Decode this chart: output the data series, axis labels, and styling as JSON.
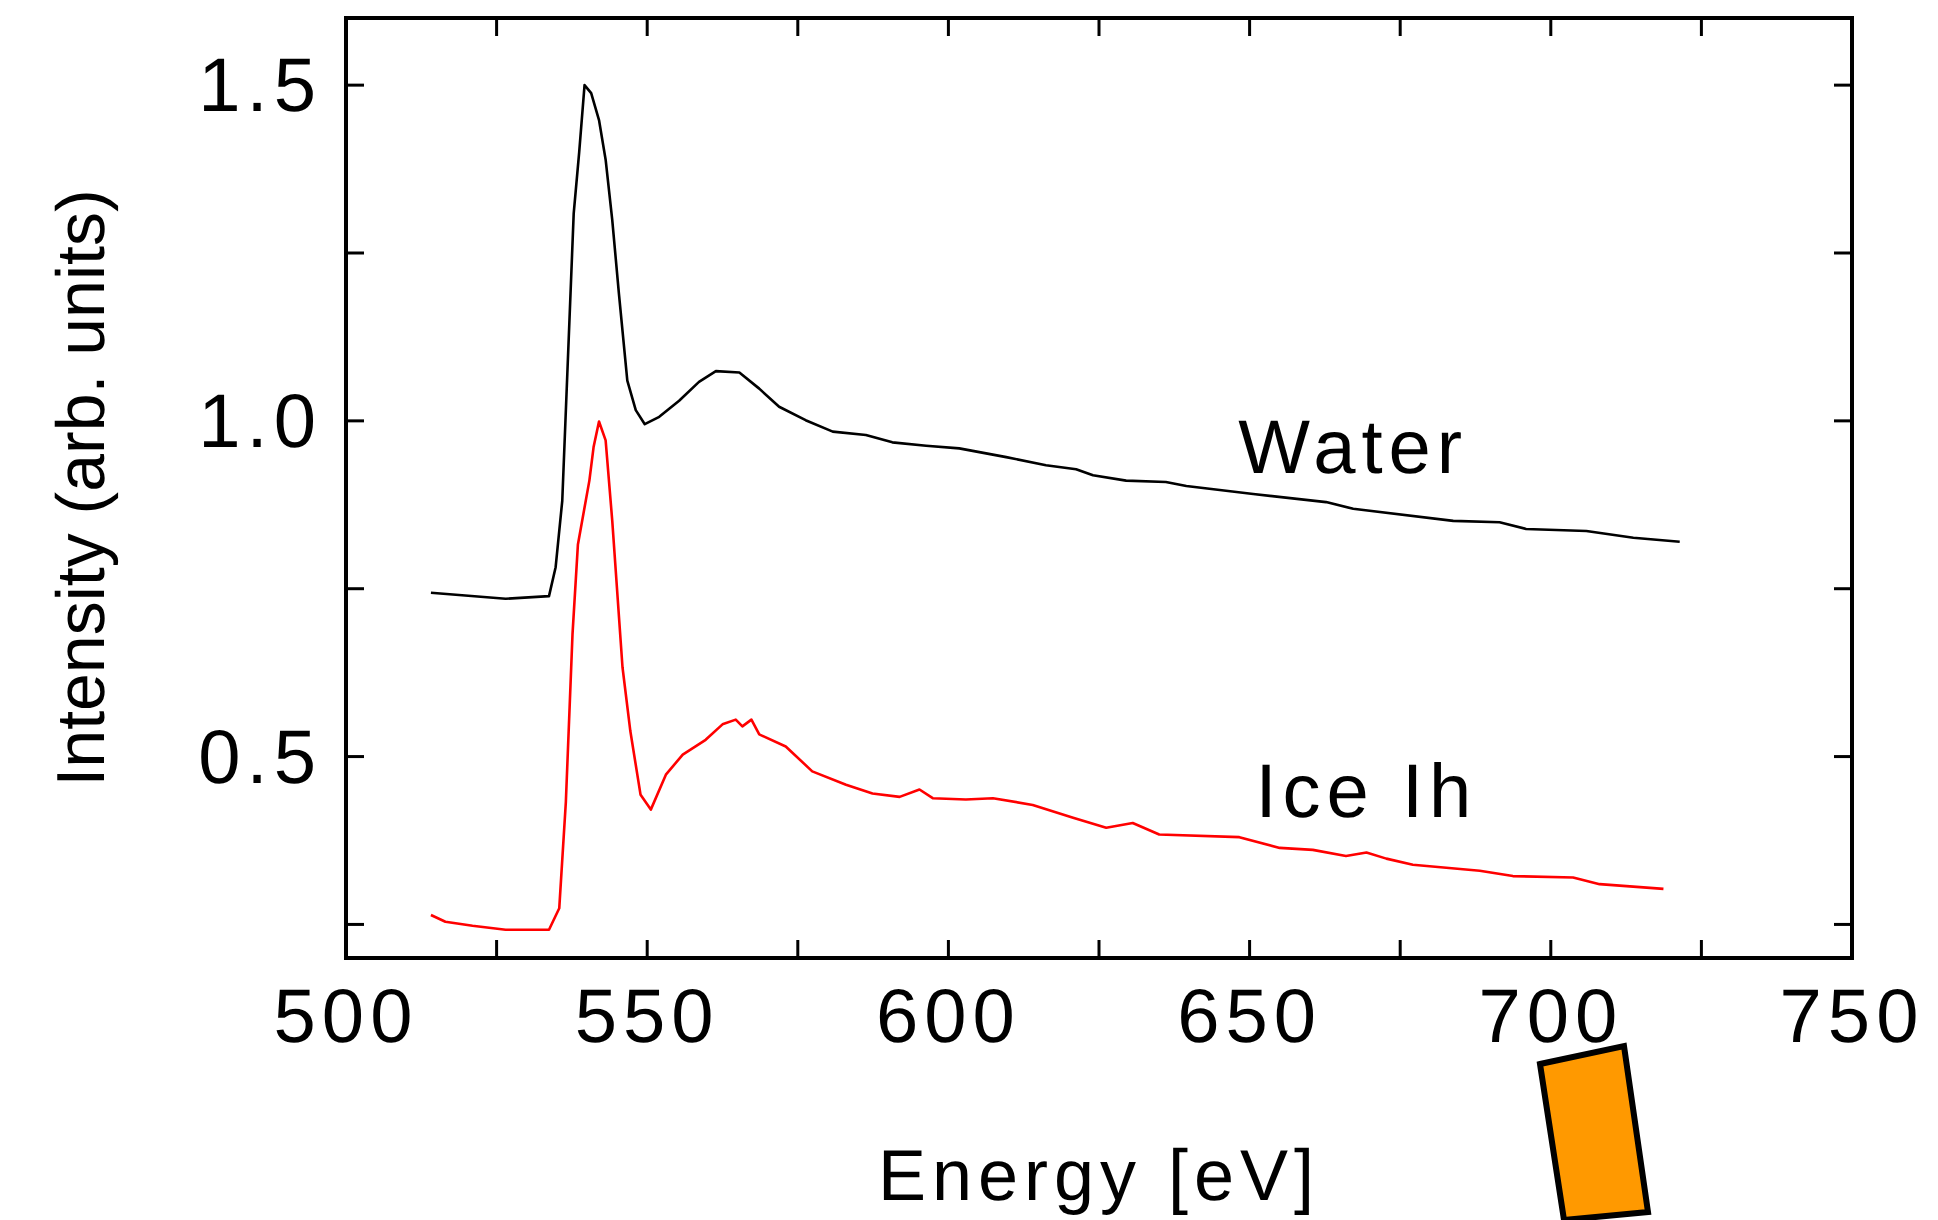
{
  "chart_data": {
    "type": "line",
    "xlabel": "Energy [eV]",
    "ylabel": "Intensity (arb. units)",
    "xlim": [
      500,
      750
    ],
    "xticks": [
      500,
      {
        "value": 525,
        "label": null
      },
      550,
      {
        "value": 575,
        "label": null
      },
      600,
      {
        "value": 625,
        "label": null
      },
      650,
      {
        "value": 675,
        "label": null
      },
      700,
      {
        "value": 725,
        "label": null
      },
      750
    ],
    "ylim": [
      0.2,
      1.6
    ],
    "yticks": [
      {
        "value": 0.25,
        "label": null
      },
      {
        "value": 0.5,
        "label": "0.5"
      },
      {
        "value": 0.75,
        "label": null
      },
      {
        "value": 1.0,
        "label": "1.0"
      },
      {
        "value": 1.25,
        "label": null
      },
      {
        "value": 1.5,
        "label": "1.5"
      }
    ],
    "series": [
      {
        "name": "Water",
        "color": "#000000",
        "x": [
          514.1,
          526.5,
          533.7,
          534.8,
          535.9,
          537.8,
          538.7,
          539.6,
          540.7,
          542.0,
          543.1,
          544.2,
          545.3,
          546.7,
          548.1,
          549.6,
          552.0,
          555.3,
          558.6,
          561.4,
          565.3,
          568.6,
          571.9,
          576.3,
          580.8,
          586.3,
          590.7,
          596.3,
          601.8,
          609.6,
          616.2,
          621.2,
          624.0,
          629.5,
          636.1,
          639.5,
          650.6,
          662.7,
          667.2,
          683.8,
          691.5,
          695.9,
          705.9,
          713.7,
          721.4
        ],
        "values": [
          0.744,
          0.735,
          0.739,
          0.782,
          0.881,
          1.309,
          1.399,
          1.5,
          1.488,
          1.448,
          1.389,
          1.299,
          1.19,
          1.06,
          1.016,
          0.995,
          1.006,
          1.03,
          1.058,
          1.074,
          1.072,
          1.048,
          1.021,
          1.001,
          0.984,
          0.979,
          0.968,
          0.963,
          0.959,
          0.946,
          0.934,
          0.928,
          0.919,
          0.911,
          0.909,
          0.903,
          0.891,
          0.879,
          0.869,
          0.851,
          0.849,
          0.839,
          0.836,
          0.826,
          0.82
        ]
      },
      {
        "name": "Ice Ih",
        "color": "#ff0000",
        "x": [
          514.1,
          516.5,
          521.0,
          526.5,
          533.7,
          535.4,
          536.5,
          537.6,
          538.5,
          540.4,
          541.1,
          542.0,
          543.1,
          544.2,
          545.9,
          547.2,
          548.9,
          550.6,
          553.1,
          555.9,
          559.7,
          562.5,
          564.7,
          565.8,
          567.3,
          568.6,
          573.0,
          577.4,
          583.0,
          587.4,
          591.9,
          595.2,
          597.4,
          602.9,
          607.4,
          614.0,
          620.7,
          626.2,
          630.6,
          635.0,
          648.3,
          655.0,
          660.5,
          666.0,
          669.4,
          672.7,
          677.1,
          688.2,
          693.7,
          703.7,
          708.1,
          718.7
        ],
        "values": [
          0.264,
          0.254,
          0.248,
          0.242,
          0.242,
          0.274,
          0.433,
          0.682,
          0.816,
          0.911,
          0.961,
          0.999,
          0.971,
          0.851,
          0.633,
          0.538,
          0.443,
          0.421,
          0.473,
          0.503,
          0.525,
          0.548,
          0.555,
          0.545,
          0.555,
          0.533,
          0.515,
          0.478,
          0.458,
          0.445,
          0.44,
          0.451,
          0.438,
          0.436,
          0.438,
          0.428,
          0.409,
          0.394,
          0.401,
          0.384,
          0.38,
          0.364,
          0.361,
          0.352,
          0.357,
          0.348,
          0.339,
          0.33,
          0.322,
          0.32,
          0.31,
          0.303
        ]
      }
    ],
    "legend": false,
    "grid": false,
    "marker": "none",
    "line_style": "solid"
  }
}
